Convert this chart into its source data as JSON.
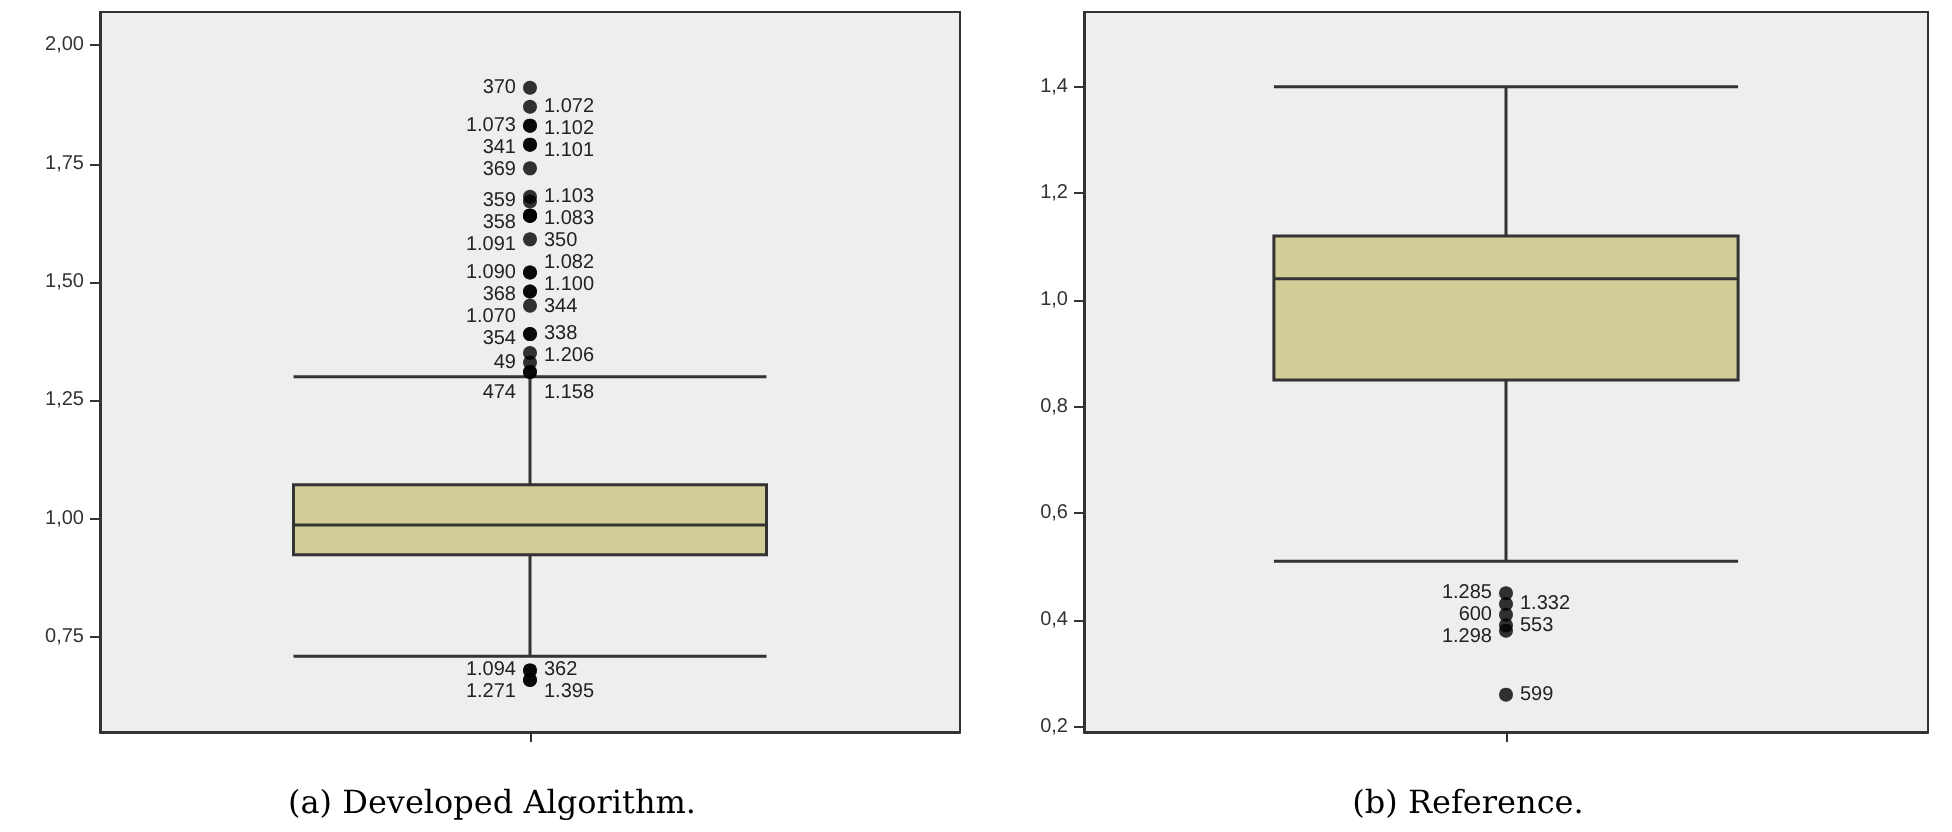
{
  "chart_data": [
    {
      "type": "box",
      "title": "(a) Developed Algorithm.",
      "categories": [
        null
      ],
      "ylim": [
        0.55,
        2.07
      ],
      "yticks": [
        {
          "value": 0.75,
          "label": "0,75"
        },
        {
          "value": 1.0,
          "label": "1,00"
        },
        {
          "value": 1.25,
          "label": "1,25"
        },
        {
          "value": 1.5,
          "label": "1,50"
        },
        {
          "value": 1.75,
          "label": "1,75"
        },
        {
          "value": 2.0,
          "label": "2,00"
        }
      ],
      "series": [
        {
          "color": "#d3ce98",
          "boxes": [
            {
              "low": 0.71,
              "q1": 0.924,
              "median": 0.987,
              "q3": 1.072,
              "high": 1.3,
              "outliers": [
                1.91,
                1.87,
                1.83,
                1.83,
                1.79,
                1.79,
                1.74,
                1.68,
                1.67,
                1.64,
                1.64,
                1.64,
                1.64,
                1.59,
                1.52,
                1.52,
                1.48,
                1.48,
                1.45,
                1.39,
                1.39,
                1.35,
                1.33,
                1.31,
                1.31,
                0.68,
                0.68,
                0.66,
                0.66
              ]
            }
          ]
        }
      ],
      "annotations": [
        "370",
        "1.072",
        "1.073",
        "1.102",
        "341",
        "1.101",
        "369",
        "1.103",
        "359",
        "1.083",
        "358",
        "350",
        "1.091",
        "1.082",
        "1.090",
        "1.100",
        "368",
        "344",
        "1.070",
        "338",
        "354",
        "1.206",
        "49",
        "1.158",
        "474",
        "362",
        "1.094",
        "1.395",
        "1.271"
      ]
    },
    {
      "type": "box",
      "title": "(b) Reference.",
      "categories": [
        null
      ],
      "ylim": [
        0.19,
        1.54
      ],
      "yticks": [
        {
          "value": 0.2,
          "label": "0,2"
        },
        {
          "value": 0.4,
          "label": "0,4"
        },
        {
          "value": 0.6,
          "label": "0,6"
        },
        {
          "value": 0.8,
          "label": "0,8"
        },
        {
          "value": 1.0,
          "label": "1,0"
        },
        {
          "value": 1.2,
          "label": "1,2"
        },
        {
          "value": 1.4,
          "label": "1,4"
        }
      ],
      "series": [
        {
          "color": "#d3ce98",
          "boxes": [
            {
              "low": 0.51,
              "q1": 0.85,
              "median": 1.04,
              "q3": 1.12,
              "high": 1.4,
              "outliers": [
                0.45,
                0.43,
                0.41,
                0.39,
                0.38,
                0.26
              ]
            }
          ]
        }
      ],
      "annotations": [
        "1.285",
        "1.332",
        "600",
        "553",
        "1.298",
        "599"
      ]
    }
  ]
}
